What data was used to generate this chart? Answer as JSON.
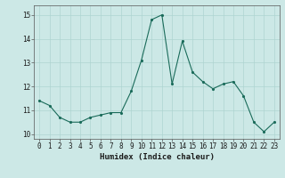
{
  "x": [
    0,
    1,
    2,
    3,
    4,
    5,
    6,
    7,
    8,
    9,
    10,
    11,
    12,
    13,
    14,
    15,
    16,
    17,
    18,
    19,
    20,
    21,
    22,
    23
  ],
  "y": [
    11.4,
    11.2,
    10.7,
    10.5,
    10.5,
    10.7,
    10.8,
    10.9,
    10.9,
    11.8,
    13.1,
    14.8,
    15.0,
    12.1,
    13.9,
    12.6,
    12.2,
    11.9,
    12.1,
    12.2,
    11.6,
    10.5,
    10.1,
    10.5
  ],
  "line_color": "#1a6b5a",
  "marker_color": "#1a6b5a",
  "bg_color": "#cce8e6",
  "grid_color": "#aed4d1",
  "xlabel": "Humidex (Indice chaleur)",
  "ylim": [
    9.8,
    15.4
  ],
  "xlim": [
    -0.5,
    23.5
  ],
  "yticks": [
    10,
    11,
    12,
    13,
    14,
    15
  ],
  "xticks": [
    0,
    1,
    2,
    3,
    4,
    5,
    6,
    7,
    8,
    9,
    10,
    11,
    12,
    13,
    14,
    15,
    16,
    17,
    18,
    19,
    20,
    21,
    22,
    23
  ],
  "tick_fontsize": 5.5,
  "xlabel_fontsize": 6.5,
  "linewidth": 0.8,
  "markersize": 2.5
}
